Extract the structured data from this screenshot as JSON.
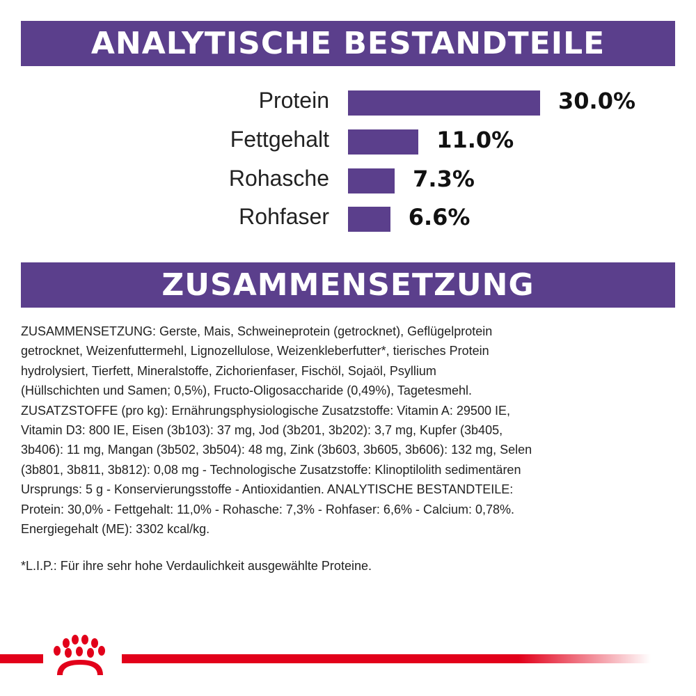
{
  "headers": {
    "analysis": "ANALYTISCHE BESTANDTEILE",
    "composition": "ZUSAMMENSETZUNG"
  },
  "chart_data": {
    "type": "bar",
    "orientation": "horizontal",
    "categories": [
      "Protein",
      "Fettgehalt",
      "Rohasche",
      "Rohfaser"
    ],
    "values": [
      30.0,
      11.0,
      7.3,
      6.6
    ],
    "value_labels": [
      "30.0%",
      "11.0%",
      "7.3%",
      "6.6%"
    ],
    "title": "ANALYTISCHE BESTANDTEILE",
    "grid": false,
    "bar_color": "#5b3f8c"
  },
  "composition_lines": [
    "ZUSAMMENSETZUNG: Gerste, Mais, Schweineprotein (getrocknet), Geflügelprotein",
    "getrocknet, Weizenfuttermehl, Lignozellulose, Weizenkleberfutter*, tierisches Protein",
    "hydrolysiert, Tierfett, Mineralstoffe, Zichorienfaser, Fischöl, Sojaöl, Psyllium",
    "(Hüllschichten und Samen; 0,5%), Fructo-Oligosaccharide (0,49%), Tagetesmehl.",
    "ZUSATZSTOFFE (pro kg): Ernährungsphysiologische Zusatzstoffe: Vitamin A: 29500 IE,",
    "Vitamin D3: 800 IE, Eisen (3b103): 37 mg, Jod (3b201, 3b202): 3,7 mg, Kupfer (3b405,",
    "3b406): 11 mg, Mangan (3b502, 3b504): 48 mg, Zink (3b603, 3b605, 3b606): 132 mg, Selen",
    "(3b801, 3b811, 3b812): 0,08 mg - Technologische Zusatzstoffe: Klinoptilolith sedimentären",
    "Ursprungs: 5 g - Konservierungsstoffe - Antioxidantien. ANALYTISCHE BESTANDTEILE:",
    "Protein: 30,0% - Fettgehalt: 11,0% - Rohasche: 7,3% - Rohfaser: 6,6% - Calcium: 0,78%.",
    "Energiegehalt (ME): 3302 kcal/kg."
  ],
  "footnote": "*L.I.P.: Für ihre sehr hohe Verdaulichkeit ausgewählte Proteine.",
  "brand": {
    "logo": "royal-canin-crown-logo",
    "color": "#e2001a"
  }
}
